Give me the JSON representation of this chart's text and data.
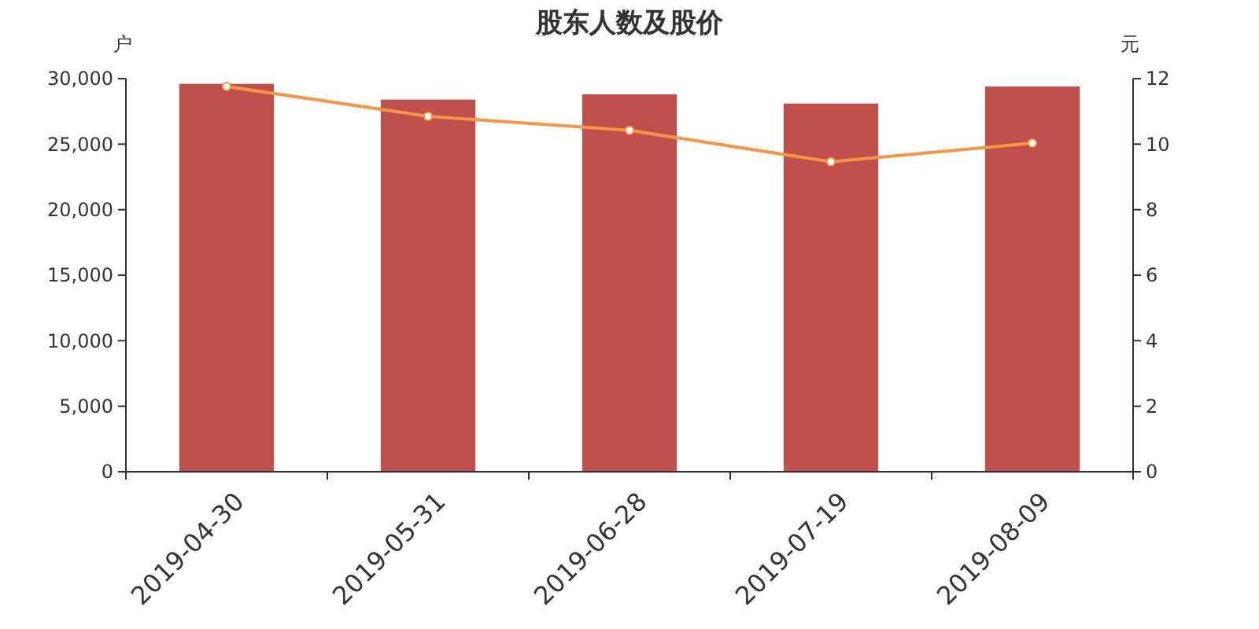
{
  "chart_data": {
    "type": "bar",
    "title": "股东人数及股价",
    "ylabel": "户",
    "y2label": "元",
    "categories": [
      "2019-04-30",
      "2019-05-31",
      "2019-06-28",
      "2019-07-19",
      "2019-08-09"
    ],
    "series": [
      {
        "color": "#c0504d",
        "values": [
          29600,
          28400,
          28800,
          28100,
          29400
        ]
      },
      {
        "type": "line",
        "axis": "y2",
        "color": "#f79646",
        "marker": "circle",
        "values": [
          11.76,
          10.85,
          10.42,
          9.46,
          10.03
        ]
      }
    ],
    "ylim": [
      0,
      30000
    ],
    "yticks": [
      {
        "value": 0,
        "label": "0"
      },
      {
        "value": 5000,
        "label": "5,000"
      },
      {
        "value": 10000,
        "label": "10,000"
      },
      {
        "value": 15000,
        "label": "15,000"
      },
      {
        "value": 20000,
        "label": "20,000"
      },
      {
        "value": 25000,
        "label": "25,000"
      },
      {
        "value": 30000,
        "label": "30,000"
      }
    ],
    "y2lim": [
      0,
      12
    ],
    "y2ticks": [
      0,
      2,
      4,
      6,
      8,
      10,
      12
    ],
    "grid": false
  }
}
